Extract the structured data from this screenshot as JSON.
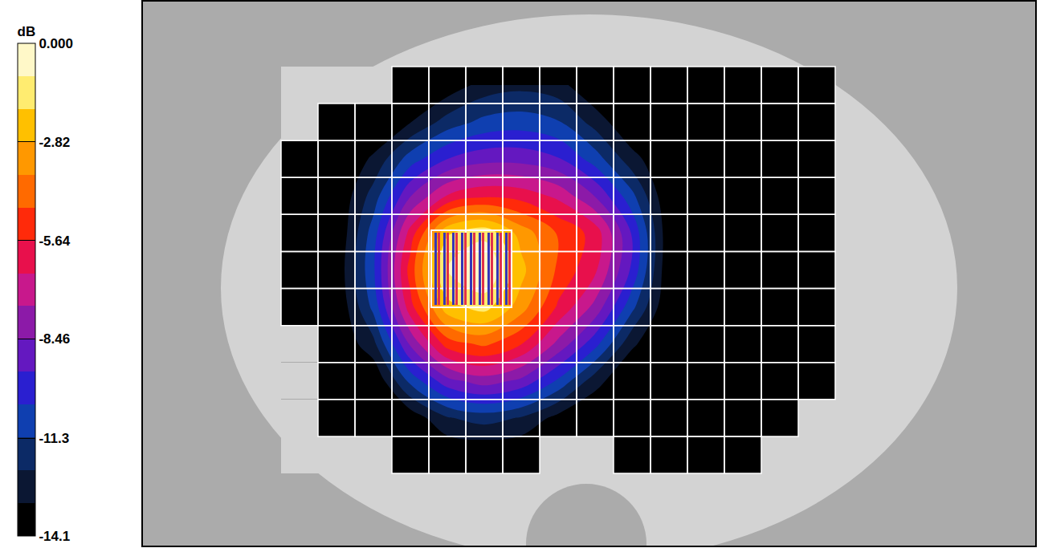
{
  "chart_data": {
    "type": "heatmap",
    "cells": [
      [
        null,
        null,
        null,
        -14.1,
        -13.8,
        -12.8,
        -12.5,
        -12.8,
        -14.1,
        -14.1,
        -14.1,
        -14.1,
        -14.1,
        -14.1,
        -14.1
      ],
      [
        null,
        -14.1,
        -14.1,
        -13.2,
        -11.8,
        -11.0,
        -10.8,
        -11.2,
        -12.6,
        -14.1,
        -14.1,
        -14.1,
        -14.1,
        -14.1,
        -14.1
      ],
      [
        -14.1,
        -14.1,
        -13.0,
        -10.8,
        -9.4,
        -8.8,
        -8.8,
        -9.3,
        -10.8,
        -12.8,
        -14.1,
        -14.1,
        -14.1,
        -14.1,
        -14.1
      ],
      [
        -14.1,
        -14.1,
        -11.8,
        -8.5,
        -6.5,
        -5.8,
        -6.0,
        -6.8,
        -8.5,
        -11.0,
        -14.1,
        -14.1,
        -14.1,
        -14.1,
        -14.1
      ],
      [
        -14.1,
        -14.1,
        -10.8,
        -6.2,
        -2.0,
        -1.2,
        -3.2,
        -4.8,
        -6.0,
        -9.5,
        -13.9,
        -14.1,
        -14.1,
        -14.1,
        -14.1
      ],
      [
        -14.1,
        -13.9,
        -10.5,
        -5.2,
        -0.8,
        0,
        -2.5,
        -4.9,
        -6.4,
        -9.6,
        -14.0,
        -14.1,
        -14.1,
        -14.1,
        -14.1
      ],
      [
        -14.1,
        -14.1,
        -11.0,
        -6.0,
        -2.2,
        -1.5,
        -3.3,
        -5.8,
        -7.8,
        -11.0,
        -14.1,
        -14.1,
        -14.1,
        -14.1,
        -14.1
      ],
      [
        null,
        -14.1,
        -12.5,
        -8.3,
        -5.2,
        -4.5,
        -5.6,
        -7.8,
        -10.0,
        -13.0,
        -14.1,
        -14.1,
        -14.1,
        -14.1,
        -14.1
      ],
      [
        null,
        -14.1,
        -14.1,
        -11.0,
        -8.8,
        -8.0,
        -8.7,
        -10.5,
        -12.8,
        -14.1,
        -14.1,
        -14.1,
        -14.1,
        -14.1,
        -14.1
      ],
      [
        null,
        -14.1,
        -14.1,
        -13.8,
        -12.3,
        -11.8,
        -12.3,
        -13.5,
        -14.1,
        -14.1,
        -14.1,
        -14.1,
        -14.1,
        -14.1,
        null
      ],
      [
        null,
        null,
        null,
        -14.1,
        -14.1,
        -14.1,
        -14.1,
        null,
        null,
        -14.1,
        -14.1,
        -14.1,
        -14.1,
        null,
        null
      ]
    ],
    "colorbar": {
      "title": "dB",
      "range": [
        -14.1,
        0
      ],
      "levels": 15,
      "ticks": [
        {
          "value": 0,
          "label": "0.000"
        },
        -2.82,
        -5.64,
        -8.46,
        -11.3,
        -14.1
      ]
    },
    "grid": true,
    "tick_labels": false
  }
}
